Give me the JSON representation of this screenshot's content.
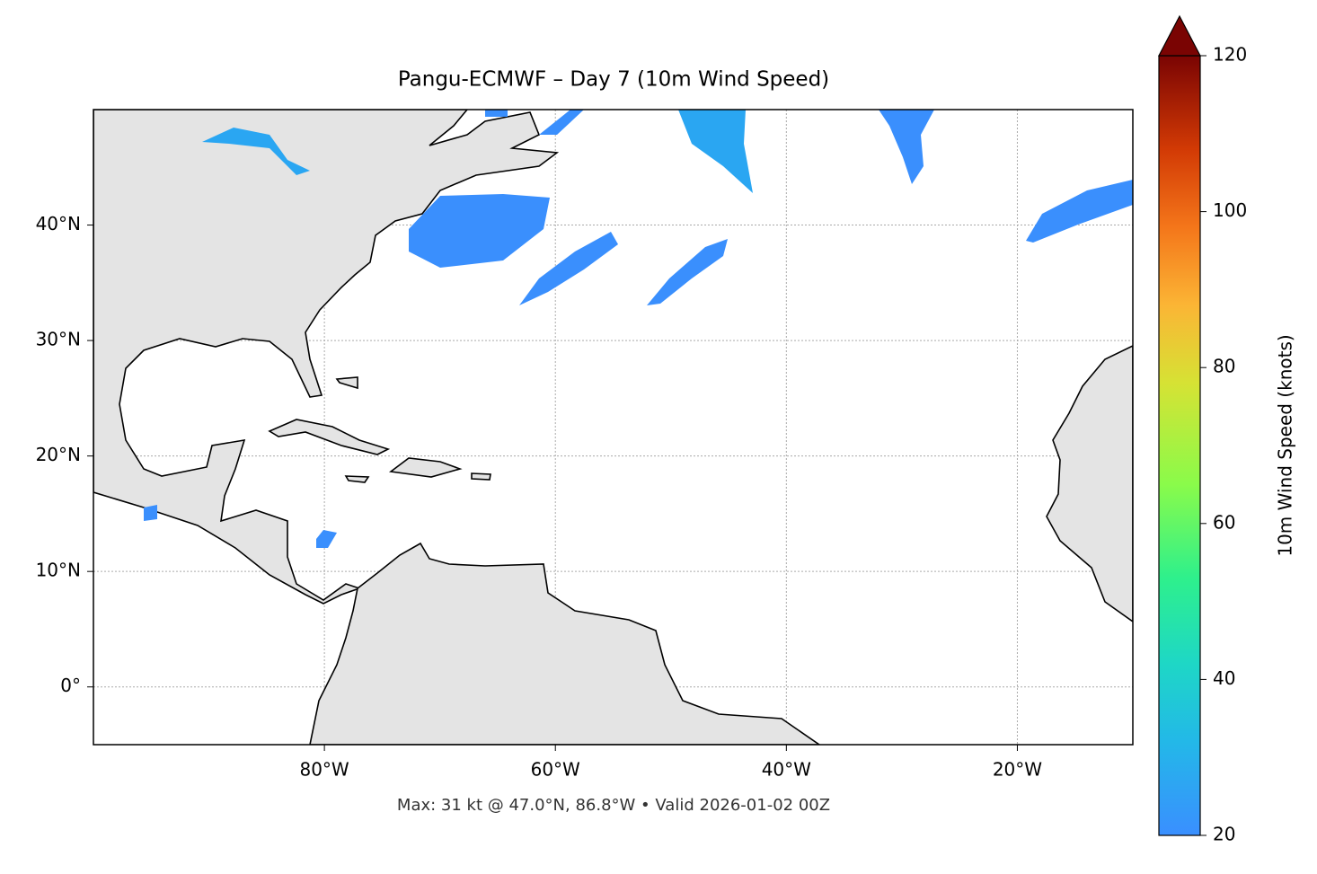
{
  "chart_data": {
    "type": "map",
    "title": "Pangu-ECMWF – Day 7 (10m Wind Speed)",
    "xlim": [
      -100,
      -10
    ],
    "ylim": [
      -5,
      50
    ],
    "xticks": [
      {
        "value": -80,
        "label": "80°W"
      },
      {
        "value": -60,
        "label": "60°W"
      },
      {
        "value": -40,
        "label": "40°W"
      },
      {
        "value": -20,
        "label": "20°W"
      }
    ],
    "yticks": [
      {
        "value": 0,
        "label": "0°"
      },
      {
        "value": 10,
        "label": "10°N"
      },
      {
        "value": 20,
        "label": "20°N"
      },
      {
        "value": 30,
        "label": "30°N"
      },
      {
        "value": 40,
        "label": "40°N"
      }
    ],
    "grid": true,
    "colorbar": {
      "label": "10m Wind Speed (knots)",
      "lim": [
        20,
        120
      ],
      "ticks": [
        20,
        40,
        60,
        80,
        100,
        120
      ],
      "extend": "max"
    },
    "annotation": "Max: 31 kt @ 47.0°N, 86.8°W • Valid 2026-01-02 00Z"
  }
}
